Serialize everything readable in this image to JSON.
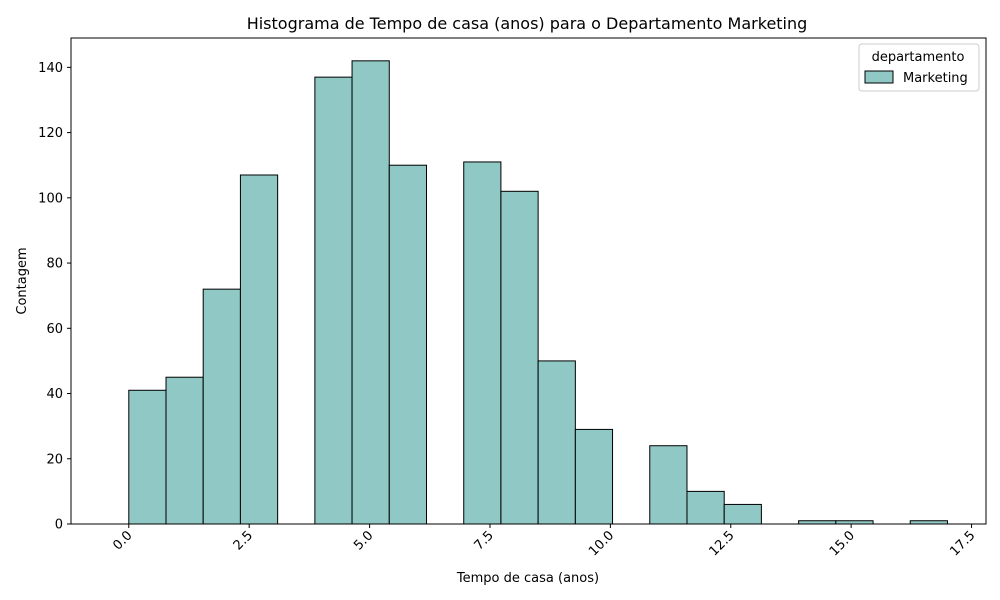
{
  "chart_data": {
    "type": "bar",
    "title": "Histograma de Tempo de casa (anos) para o Departamento Marketing",
    "xlabel": "Tempo de casa (anos)",
    "ylabel": "Contagem",
    "xlim": [
      -1.2,
      17.8
    ],
    "ylim": [
      0,
      149
    ],
    "x_ticks": [
      0.0,
      2.5,
      5.0,
      7.5,
      10.0,
      12.5,
      15.0,
      17.5
    ],
    "x_tick_labels": [
      "0.0",
      "2.5",
      "5.0",
      "7.5",
      "10.0",
      "12.5",
      "15.0",
      "17.5"
    ],
    "y_ticks": [
      0,
      20,
      40,
      60,
      80,
      100,
      120,
      140
    ],
    "y_tick_labels": [
      "0",
      "20",
      "40",
      "60",
      "80",
      "100",
      "120",
      "140"
    ],
    "bar_color": "#8fc8c4",
    "edge_color": "#000000",
    "bins": [
      {
        "x0": 0.0,
        "x1": 0.773,
        "count": 41
      },
      {
        "x0": 0.773,
        "x1": 1.545,
        "count": 45
      },
      {
        "x0": 1.545,
        "x1": 2.318,
        "count": 72
      },
      {
        "x0": 2.318,
        "x1": 3.091,
        "count": 107
      },
      {
        "x0": 3.091,
        "x1": 3.864,
        "count": 0
      },
      {
        "x0": 3.864,
        "x1": 4.636,
        "count": 137
      },
      {
        "x0": 4.636,
        "x1": 5.409,
        "count": 142
      },
      {
        "x0": 5.409,
        "x1": 6.182,
        "count": 110
      },
      {
        "x0": 6.182,
        "x1": 6.955,
        "count": 0
      },
      {
        "x0": 6.955,
        "x1": 7.727,
        "count": 111
      },
      {
        "x0": 7.727,
        "x1": 8.5,
        "count": 102
      },
      {
        "x0": 8.5,
        "x1": 9.273,
        "count": 50
      },
      {
        "x0": 9.273,
        "x1": 10.045,
        "count": 29
      },
      {
        "x0": 10.045,
        "x1": 10.818,
        "count": 0
      },
      {
        "x0": 10.818,
        "x1": 11.591,
        "count": 24
      },
      {
        "x0": 11.591,
        "x1": 12.364,
        "count": 10
      },
      {
        "x0": 12.364,
        "x1": 13.136,
        "count": 6
      },
      {
        "x0": 13.136,
        "x1": 13.909,
        "count": 0
      },
      {
        "x0": 13.909,
        "x1": 14.682,
        "count": 1
      },
      {
        "x0": 14.682,
        "x1": 15.455,
        "count": 1
      },
      {
        "x0": 15.455,
        "x1": 16.227,
        "count": 0
      },
      {
        "x0": 16.227,
        "x1": 17.0,
        "count": 1
      }
    ],
    "legend": {
      "title": "departamento",
      "entries": [
        "Marketing"
      ],
      "placement": "top-right"
    },
    "grid": false
  }
}
